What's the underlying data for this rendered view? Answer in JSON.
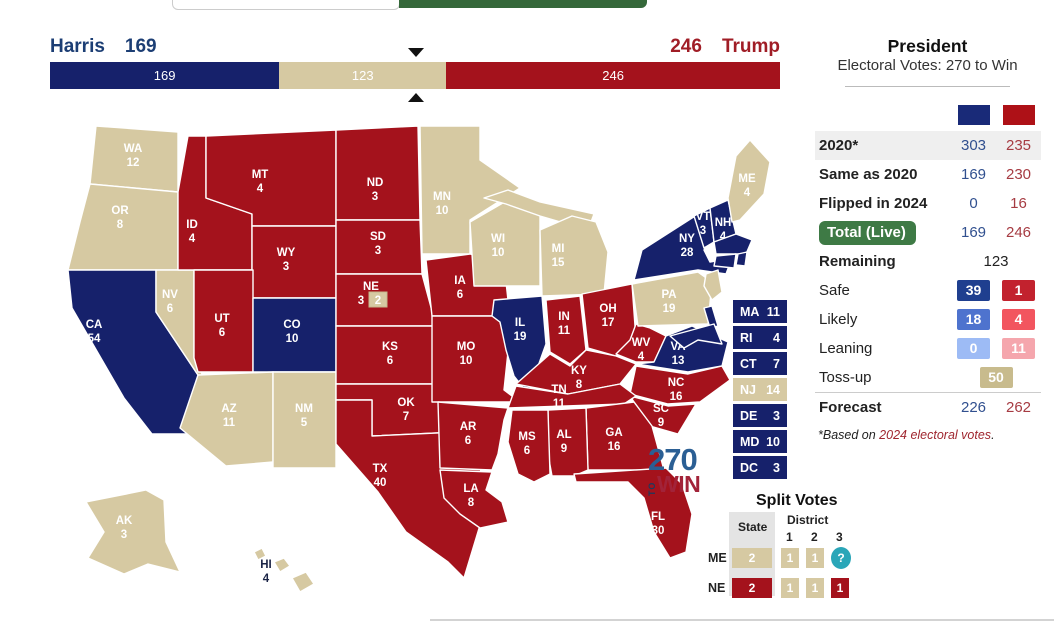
{
  "colors": {
    "dem": "#16216b",
    "rep": "#a4121c",
    "tossup": "#d6c9a2",
    "swatch_dem": "#192a78",
    "swatch_rep": "#ae1117",
    "safe_dem": "#1f3f8f",
    "safe_rep": "#c2222e",
    "likely_dem": "#4e73ce",
    "likely_rep": "#f2555f",
    "lean_dem": "#9dbbf5",
    "lean_rep": "#f5a6ad",
    "tossup_badge": "#c8bb8d",
    "green": "#3e7a45",
    "unknown": "#2aa6b8",
    "dem_text": "#31508f",
    "rep_text": "#a63b42"
  },
  "header": {
    "harris_label": "Harris",
    "harris_total": "169",
    "trump_total": "246",
    "trump_label": "Trump",
    "total_votes": 538,
    "win_marker": 270,
    "segments": [
      {
        "value": 169,
        "label": "169",
        "party": "dem"
      },
      {
        "value": 123,
        "label": "123",
        "party": "tossup"
      },
      {
        "value": 246,
        "label": "246",
        "party": "rep"
      }
    ]
  },
  "sidebar": {
    "title": "President",
    "subtitle": "Electoral Votes: 270 to Win",
    "rows": [
      {
        "label": "2020*",
        "dem": "303",
        "rep": "235",
        "bold": true,
        "shaded": true
      },
      {
        "label": "Same as 2020",
        "dem": "169",
        "rep": "230",
        "bold": true
      },
      {
        "label": "Flipped in 2024",
        "dem": "0",
        "rep": "16",
        "bold": true
      },
      {
        "label": "Total (Live)",
        "dem": "169",
        "rep": "246",
        "bold": true,
        "pill": true
      },
      {
        "label": "Remaining",
        "center": "123",
        "bold": true
      },
      {
        "label": "Safe",
        "dem": "39",
        "rep": "1",
        "badges": "safe"
      },
      {
        "label": "Likely",
        "dem": "18",
        "rep": "4",
        "badges": "likely"
      },
      {
        "label": "Leaning",
        "dem": "0",
        "rep": "11",
        "badges": "lean"
      },
      {
        "label": "Toss-up",
        "center": "50",
        "center_badge": "tossup_badge"
      },
      {
        "label": "Forecast",
        "dem": "226",
        "rep": "262",
        "bold": true,
        "divider": true
      }
    ],
    "footnote_prefix": "*Based on ",
    "footnote_link": "2024 electoral votes",
    "footnote_suffix": "."
  },
  "logo": {
    "num": "270",
    "to": "TO",
    "win": "WIN"
  },
  "split_votes": {
    "title": "Split Votes",
    "col_state": "State",
    "col_district": "District",
    "district_cols": [
      "1",
      "2",
      "3"
    ],
    "rows": [
      {
        "label": "ME",
        "state": {
          "text": "2",
          "party": "tossup"
        },
        "districts": [
          {
            "text": "1",
            "party": "tossup"
          },
          {
            "text": "1",
            "party": "tossup"
          },
          {
            "text": "?",
            "party": "unknown"
          }
        ]
      },
      {
        "label": "NE",
        "state": {
          "text": "2",
          "party": "rep"
        },
        "districts": [
          {
            "text": "1",
            "party": "tossup"
          },
          {
            "text": "1",
            "party": "tossup"
          },
          {
            "text": "1",
            "party": "rep"
          }
        ]
      }
    ]
  },
  "small_states": [
    {
      "abbr": "MA",
      "ev": "11",
      "party": "dem"
    },
    {
      "abbr": "RI",
      "ev": "4",
      "party": "dem"
    },
    {
      "abbr": "CT",
      "ev": "7",
      "party": "dem"
    },
    {
      "abbr": "NJ",
      "ev": "14",
      "party": "tossup"
    },
    {
      "abbr": "DE",
      "ev": "3",
      "party": "dem"
    },
    {
      "abbr": "MD",
      "ev": "10",
      "party": "dem"
    },
    {
      "abbr": "DC",
      "ev": "3",
      "party": "dem"
    }
  ],
  "map": {
    "states": [
      {
        "abbr": "WA",
        "ev": "12",
        "party": "tossup"
      },
      {
        "abbr": "OR",
        "ev": "8",
        "party": "tossup"
      },
      {
        "abbr": "CA",
        "ev": "54",
        "party": "dem"
      },
      {
        "abbr": "NV",
        "ev": "6",
        "party": "tossup"
      },
      {
        "abbr": "ID",
        "ev": "4",
        "party": "rep"
      },
      {
        "abbr": "MT",
        "ev": "4",
        "party": "rep"
      },
      {
        "abbr": "WY",
        "ev": "3",
        "party": "rep"
      },
      {
        "abbr": "UT",
        "ev": "6",
        "party": "rep"
      },
      {
        "abbr": "CO",
        "ev": "10",
        "party": "dem"
      },
      {
        "abbr": "AZ",
        "ev": "11",
        "party": "tossup"
      },
      {
        "abbr": "NM",
        "ev": "5",
        "party": "tossup"
      },
      {
        "abbr": "ND",
        "ev": "3",
        "party": "rep"
      },
      {
        "abbr": "SD",
        "ev": "3",
        "party": "rep"
      },
      {
        "abbr": "NE",
        "ev": "3",
        "party": "rep",
        "extra_box": "2"
      },
      {
        "abbr": "KS",
        "ev": "6",
        "party": "rep"
      },
      {
        "abbr": "OK",
        "ev": "7",
        "party": "rep"
      },
      {
        "abbr": "TX",
        "ev": "40",
        "party": "rep"
      },
      {
        "abbr": "MN",
        "ev": "10",
        "party": "tossup"
      },
      {
        "abbr": "IA",
        "ev": "6",
        "party": "rep"
      },
      {
        "abbr": "MO",
        "ev": "10",
        "party": "rep"
      },
      {
        "abbr": "WI",
        "ev": "10",
        "party": "tossup"
      },
      {
        "abbr": "MI",
        "ev": "15",
        "party": "tossup"
      },
      {
        "abbr": "IL",
        "ev": "19",
        "party": "dem"
      },
      {
        "abbr": "IN",
        "ev": "11",
        "party": "rep"
      },
      {
        "abbr": "OH",
        "ev": "17",
        "party": "rep"
      },
      {
        "abbr": "KY",
        "ev": "8",
        "party": "rep"
      },
      {
        "abbr": "WV",
        "ev": "4",
        "party": "rep"
      },
      {
        "abbr": "VA",
        "ev": "13",
        "party": "dem"
      },
      {
        "abbr": "PA",
        "ev": "19",
        "party": "tossup"
      },
      {
        "abbr": "NY",
        "ev": "28",
        "party": "dem"
      },
      {
        "abbr": "VT",
        "ev": "3",
        "party": "dem"
      },
      {
        "abbr": "NH",
        "ev": "4",
        "party": "dem"
      },
      {
        "abbr": "ME",
        "ev": "4",
        "party": "tossup"
      },
      {
        "abbr": "MA",
        "party": "dem"
      },
      {
        "abbr": "CT",
        "party": "dem"
      },
      {
        "abbr": "RI",
        "party": "dem"
      },
      {
        "abbr": "NJ",
        "party": "tossup"
      },
      {
        "abbr": "DE",
        "party": "dem"
      },
      {
        "abbr": "MD",
        "party": "dem"
      },
      {
        "abbr": "NC",
        "ev": "16",
        "party": "rep"
      },
      {
        "abbr": "SC",
        "ev": "9",
        "party": "rep"
      },
      {
        "abbr": "TN",
        "ev": "11",
        "party": "rep"
      },
      {
        "abbr": "GA",
        "ev": "16",
        "party": "rep"
      },
      {
        "abbr": "AL",
        "ev": "9",
        "party": "rep"
      },
      {
        "abbr": "MS",
        "ev": "6",
        "party": "rep"
      },
      {
        "abbr": "AR",
        "ev": "6",
        "party": "rep"
      },
      {
        "abbr": "LA",
        "ev": "8",
        "party": "rep"
      },
      {
        "abbr": "FL",
        "ev": "30",
        "party": "rep"
      },
      {
        "abbr": "AK",
        "ev": "3",
        "party": "tossup"
      },
      {
        "abbr": "HI",
        "ev": "4",
        "party": "tossup",
        "label_dark": true
      }
    ]
  }
}
